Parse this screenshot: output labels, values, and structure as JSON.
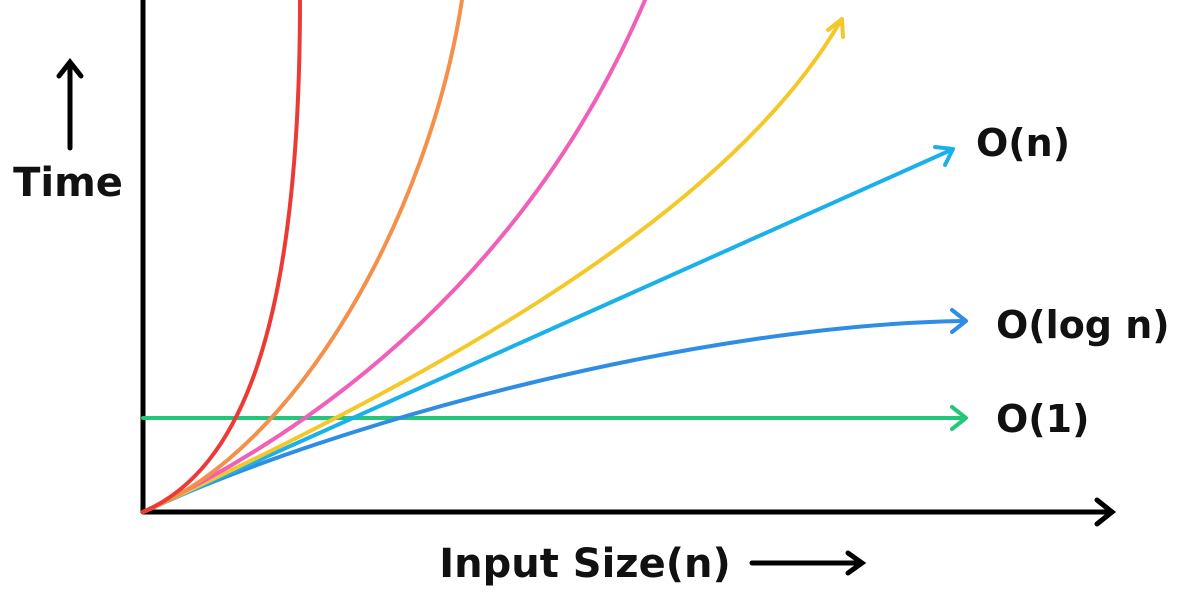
{
  "axes": {
    "x_label": "Input Size(n)",
    "y_label": "Time"
  },
  "series": [
    {
      "key": "o1",
      "label": "O(1)",
      "color": "#22c77a"
    },
    {
      "key": "ologn",
      "label": "O(log n)",
      "color": "#2f8de4"
    },
    {
      "key": "on",
      "label": "O(n)",
      "color": "#1ab1ea"
    },
    {
      "key": "onlogn",
      "label": "",
      "color": "#f5c82a"
    },
    {
      "key": "on2",
      "label": "",
      "color": "#f060b8"
    },
    {
      "key": "o2n",
      "label": "",
      "color": "#f4904a"
    },
    {
      "key": "onfact",
      "label": "",
      "color": "#ec3a35"
    }
  ]
}
